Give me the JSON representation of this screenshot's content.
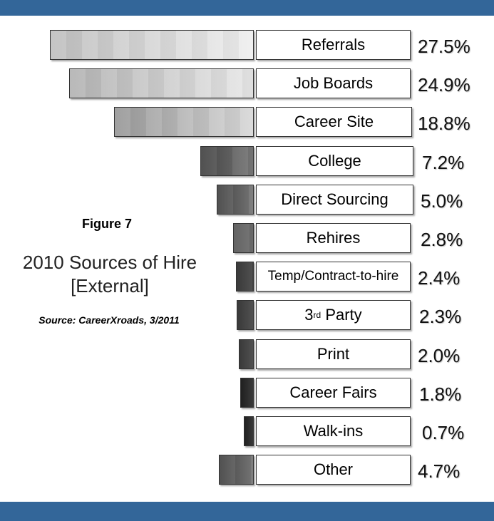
{
  "figure_label": "Figure 7",
  "title_line1": "2010 Sources of Hire",
  "title_line2": "[External]",
  "source": "Source: CareerXroads, 3/2011",
  "colors": {
    "band": "#336699"
  },
  "chart_data": {
    "type": "bar",
    "orientation": "horizontal",
    "categories": [
      "Referrals",
      "Job Boards",
      "Career Site",
      "College",
      "Direct Sourcing",
      "Rehires",
      "Temp/Contract-to-hire",
      "3rd Party",
      "Print",
      "Career Fairs",
      "Walk-ins",
      "Other"
    ],
    "values": [
      27.5,
      24.9,
      18.8,
      7.2,
      5.0,
      2.8,
      2.4,
      2.3,
      2.0,
      1.8,
      0.7,
      4.7
    ],
    "value_labels": [
      "27.5%",
      "24.9%",
      "18.8%",
      "7.2%",
      "5.0%",
      "2.8%",
      "2.4%",
      "2.3%",
      "2.0%",
      "1.8%",
      "0.7%",
      "4.7%"
    ],
    "units": "%"
  }
}
